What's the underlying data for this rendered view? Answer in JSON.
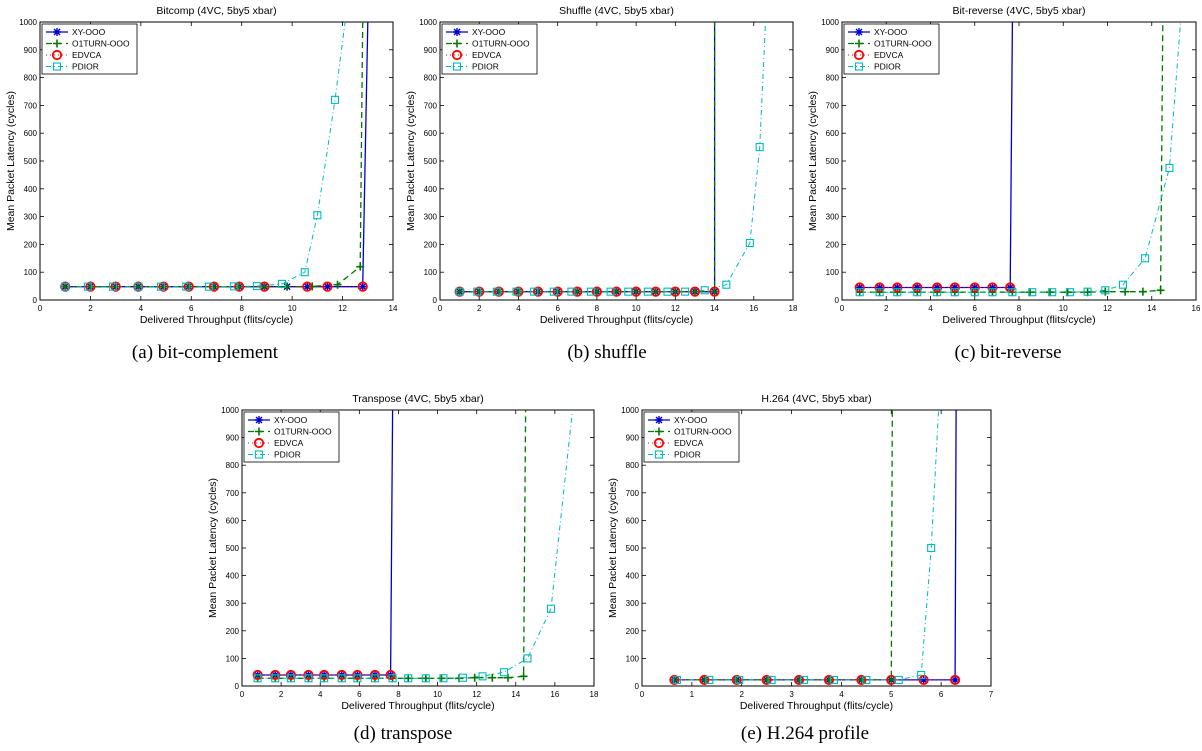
{
  "figure": {
    "captions": [
      "(a) bit-complement",
      "(b) shuffle",
      "(c) bit-reverse",
      "(d) transpose",
      "(e) H.264 profile"
    ]
  },
  "colors": {
    "XY-OOO": "#0000cc",
    "O1TURN-OOO": "#007700",
    "EDVCA": "#ff0000",
    "PDIOR": "#00bbbb"
  },
  "chart_data": [
    {
      "type": "line",
      "title": "Bitcomp (4VC, 5by5 xbar)",
      "xlabel": "Delivered Throughput (flits/cycle)",
      "ylabel": "Mean Packet Latency (cycles)",
      "xlim": [
        0,
        14
      ],
      "ylim": [
        0,
        1000
      ],
      "xticks": [
        0,
        2,
        4,
        6,
        8,
        10,
        12,
        14
      ],
      "yticks": [
        0,
        100,
        200,
        300,
        400,
        500,
        600,
        700,
        800,
        900,
        1000
      ],
      "legend": {
        "position": "top-left",
        "entries": [
          "XY-OOO",
          "O1TURN-OOO",
          "EDVCA",
          "PDIOR"
        ]
      },
      "series": [
        {
          "name": "XY-OOO",
          "x": [
            1.0,
            2.0,
            3.0,
            3.9,
            4.9,
            5.9,
            6.9,
            7.9,
            8.9,
            9.8,
            10.6,
            11.4,
            12.8,
            13.0
          ],
          "y": [
            48,
            48,
            48,
            48,
            48,
            48,
            48,
            48,
            48,
            48,
            48,
            48,
            48,
            1000
          ]
        },
        {
          "name": "O1TURN-OOO",
          "x": [
            1.0,
            2.0,
            3.0,
            3.9,
            4.9,
            5.9,
            6.9,
            7.9,
            8.9,
            9.8,
            10.8,
            11.8,
            12.7,
            12.8
          ],
          "y": [
            48,
            48,
            48,
            48,
            48,
            48,
            48,
            48,
            48,
            48,
            49,
            55,
            120,
            1000
          ]
        },
        {
          "name": "EDVCA",
          "x": [
            1.0,
            2.0,
            3.0,
            3.9,
            4.9,
            5.9,
            6.9,
            7.9,
            8.9,
            10.6,
            11.4,
            12.8
          ],
          "y": [
            48,
            48,
            48,
            48,
            48,
            48,
            48,
            48,
            48,
            48,
            48,
            48
          ]
        },
        {
          "name": "PDIOR",
          "x": [
            1.0,
            1.9,
            2.9,
            3.9,
            4.8,
            5.8,
            6.7,
            7.7,
            8.6,
            9.6,
            10.5,
            11.0,
            11.7,
            12.1
          ],
          "y": [
            48,
            48,
            48,
            48,
            48,
            48,
            48,
            49,
            50,
            58,
            100,
            305,
            720,
            1000
          ]
        }
      ]
    },
    {
      "type": "line",
      "title": "Shuffle (4VC, 5by5 xbar)",
      "xlabel": "Delivered Throughput (flits/cycle)",
      "ylabel": "Mean Packet Latency (cycles)",
      "xlim": [
        0,
        18
      ],
      "ylim": [
        0,
        1000
      ],
      "xticks": [
        0,
        2,
        4,
        6,
        8,
        10,
        12,
        14,
        16,
        18
      ],
      "yticks": [
        0,
        100,
        200,
        300,
        400,
        500,
        600,
        700,
        800,
        900,
        1000
      ],
      "legend": {
        "position": "top-left",
        "entries": [
          "XY-OOO",
          "O1TURN-OOO",
          "EDVCA",
          "PDIOR"
        ]
      },
      "series": [
        {
          "name": "XY-OOO",
          "x": [
            1.0,
            2.0,
            3.0,
            4.0,
            5.0,
            6.0,
            7.0,
            8.0,
            9.0,
            10.0,
            11.0,
            12.0,
            13.0,
            14.0,
            14.0
          ],
          "y": [
            30,
            30,
            30,
            30,
            30,
            30,
            30,
            30,
            30,
            30,
            30,
            30,
            30,
            30,
            1000
          ]
        },
        {
          "name": "O1TURN-OOO",
          "x": [
            1.0,
            2.0,
            3.0,
            4.0,
            5.0,
            6.0,
            7.0,
            8.0,
            9.0,
            10.0,
            11.0,
            12.0,
            13.0,
            14.0,
            14.0
          ],
          "y": [
            30,
            30,
            30,
            30,
            30,
            30,
            30,
            30,
            30,
            30,
            30,
            30,
            30,
            30,
            1000
          ]
        },
        {
          "name": "EDVCA",
          "x": [
            1.0,
            2.0,
            3.0,
            4.0,
            5.0,
            6.0,
            7.0,
            8.0,
            9.0,
            10.0,
            11.0,
            12.0,
            13.0,
            14.0
          ],
          "y": [
            30,
            30,
            30,
            30,
            30,
            30,
            30,
            30,
            30,
            30,
            30,
            30,
            30,
            30
          ]
        },
        {
          "name": "PDIOR",
          "x": [
            1.0,
            1.9,
            2.9,
            3.9,
            4.8,
            5.8,
            6.7,
            7.7,
            8.7,
            9.6,
            10.6,
            11.6,
            12.5,
            13.5,
            14.6,
            15.8,
            16.3,
            16.6
          ],
          "y": [
            30,
            30,
            30,
            30,
            30,
            30,
            30,
            30,
            30,
            30,
            30,
            30,
            30,
            35,
            55,
            205,
            550,
            1000
          ]
        }
      ]
    },
    {
      "type": "line",
      "title": "Bit-reverse (4VC, 5by5 xbar)",
      "xlabel": "Delivered Throughput (flits/cycle)",
      "ylabel": "Mean Packet Latency (cycles)",
      "xlim": [
        0,
        16
      ],
      "ylim": [
        0,
        1000
      ],
      "xticks": [
        0,
        2,
        4,
        6,
        8,
        10,
        12,
        14,
        16
      ],
      "yticks": [
        0,
        100,
        200,
        300,
        400,
        500,
        600,
        700,
        800,
        900,
        1000
      ],
      "legend": {
        "position": "top-left",
        "entries": [
          "XY-OOO",
          "O1TURN-OOO",
          "EDVCA",
          "PDIOR"
        ]
      },
      "series": [
        {
          "name": "XY-OOO",
          "x": [
            0.8,
            1.7,
            2.5,
            3.4,
            4.3,
            5.1,
            6.0,
            6.8,
            7.6,
            7.7
          ],
          "y": [
            45,
            45,
            45,
            45,
            45,
            45,
            45,
            45,
            45,
            1000
          ]
        },
        {
          "name": "O1TURN-OOO",
          "x": [
            0.8,
            1.7,
            2.5,
            3.4,
            4.3,
            5.1,
            6.0,
            6.8,
            7.7,
            8.5,
            9.4,
            10.2,
            11.1,
            11.9,
            12.8,
            13.6,
            14.4,
            14.5
          ],
          "y": [
            28,
            28,
            28,
            28,
            28,
            28,
            28,
            28,
            28,
            28,
            28,
            28,
            28,
            30,
            30,
            30,
            35,
            1000
          ]
        },
        {
          "name": "EDVCA",
          "x": [
            0.8,
            1.7,
            2.5,
            3.4,
            4.3,
            5.1,
            6.0,
            6.8,
            7.6
          ],
          "y": [
            45,
            45,
            45,
            45,
            45,
            45,
            45,
            45,
            45
          ]
        },
        {
          "name": "PDIOR",
          "x": [
            0.8,
            1.7,
            2.5,
            3.4,
            4.3,
            5.1,
            6.0,
            6.8,
            7.7,
            8.6,
            9.5,
            10.3,
            11.1,
            11.9,
            12.7,
            13.7,
            14.8,
            15.3
          ],
          "y": [
            28,
            28,
            28,
            28,
            28,
            28,
            28,
            28,
            28,
            28,
            28,
            28,
            30,
            35,
            55,
            150,
            475,
            1000
          ]
        }
      ]
    },
    {
      "type": "line",
      "title": "Transpose (4VC, 5by5 xbar)",
      "xlabel": "Delivered Throughput (flits/cycle)",
      "ylabel": "Mean Packet Latency (cycles)",
      "xlim": [
        0,
        18
      ],
      "ylim": [
        0,
        1000
      ],
      "xticks": [
        0,
        2,
        4,
        6,
        8,
        10,
        12,
        14,
        16,
        18
      ],
      "yticks": [
        0,
        100,
        200,
        300,
        400,
        500,
        600,
        700,
        800,
        900,
        1000
      ],
      "legend": {
        "position": "top-left",
        "entries": [
          "XY-OOO",
          "O1TURN-OOO",
          "EDVCA",
          "PDIOR"
        ]
      },
      "series": [
        {
          "name": "XY-OOO",
          "x": [
            0.8,
            1.7,
            2.5,
            3.4,
            4.2,
            5.1,
            5.9,
            6.8,
            7.6,
            7.7
          ],
          "y": [
            40,
            40,
            40,
            40,
            40,
            40,
            40,
            40,
            40,
            1000
          ]
        },
        {
          "name": "O1TURN-OOO",
          "x": [
            0.8,
            1.7,
            2.5,
            3.4,
            4.2,
            5.1,
            5.9,
            6.8,
            7.7,
            8.5,
            9.4,
            10.2,
            11.1,
            11.9,
            12.8,
            13.6,
            14.4,
            14.5
          ],
          "y": [
            28,
            28,
            28,
            28,
            28,
            28,
            28,
            28,
            28,
            28,
            28,
            28,
            28,
            30,
            30,
            30,
            35,
            1000
          ]
        },
        {
          "name": "EDVCA",
          "x": [
            0.8,
            1.7,
            2.5,
            3.4,
            4.2,
            5.1,
            5.9,
            6.8,
            7.6
          ],
          "y": [
            40,
            40,
            40,
            40,
            40,
            40,
            40,
            40,
            40
          ]
        },
        {
          "name": "PDIOR",
          "x": [
            0.8,
            1.7,
            2.5,
            3.4,
            4.2,
            5.1,
            5.9,
            6.8,
            7.7,
            8.5,
            9.4,
            10.3,
            11.3,
            12.3,
            13.4,
            14.6,
            15.8,
            16.9
          ],
          "y": [
            28,
            28,
            28,
            28,
            28,
            28,
            28,
            28,
            28,
            28,
            28,
            28,
            30,
            35,
            50,
            100,
            280,
            1000
          ]
        }
      ]
    },
    {
      "type": "line",
      "title": "H.264 (4VC, 5by5 xbar)",
      "xlabel": "Delivered Throughput (flits/cycle)",
      "ylabel": "Mean Packet Latency (cycles)",
      "xlim": [
        0,
        7
      ],
      "ylim": [
        0,
        1000
      ],
      "xticks": [
        0,
        1,
        2,
        3,
        4,
        5,
        6,
        7
      ],
      "yticks": [
        0,
        100,
        200,
        300,
        400,
        500,
        600,
        700,
        800,
        900,
        1000
      ],
      "legend": {
        "position": "top-left",
        "entries": [
          "XY-OOO",
          "O1TURN-OOO",
          "EDVCA",
          "PDIOR"
        ]
      },
      "series": [
        {
          "name": "XY-OOO",
          "x": [
            0.65,
            1.25,
            1.9,
            2.5,
            3.15,
            3.75,
            4.4,
            5.0,
            5.65,
            6.28,
            6.3
          ],
          "y": [
            22,
            22,
            22,
            22,
            22,
            22,
            22,
            22,
            22,
            22,
            1000
          ]
        },
        {
          "name": "O1TURN-OOO",
          "x": [
            0.65,
            1.25,
            1.9,
            2.5,
            3.15,
            3.75,
            4.4,
            5.0,
            5.02
          ],
          "y": [
            22,
            22,
            22,
            22,
            22,
            22,
            22,
            22,
            1000
          ]
        },
        {
          "name": "EDVCA",
          "x": [
            0.65,
            1.25,
            1.9,
            2.5,
            3.15,
            3.75,
            4.4,
            5.0,
            5.65,
            6.28
          ],
          "y": [
            22,
            22,
            22,
            22,
            22,
            22,
            22,
            22,
            22,
            22
          ]
        },
        {
          "name": "PDIOR",
          "x": [
            0.7,
            1.35,
            1.95,
            2.6,
            3.25,
            3.85,
            4.5,
            5.15,
            5.6,
            5.8,
            5.95
          ],
          "y": [
            22,
            22,
            22,
            22,
            22,
            22,
            22,
            22,
            40,
            500,
            1000
          ]
        }
      ]
    }
  ]
}
